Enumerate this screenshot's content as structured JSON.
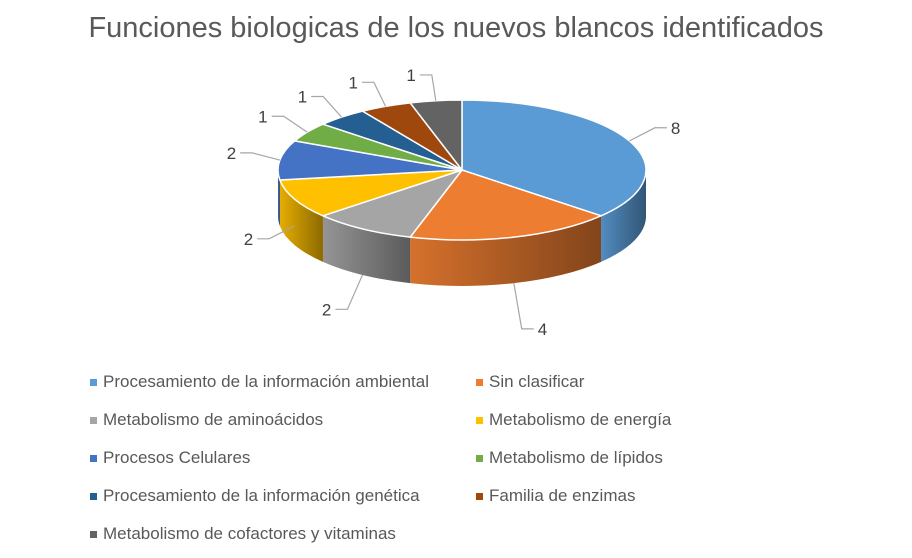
{
  "chart_data": {
    "type": "pie",
    "title": "Funciones biologicas de los nuevos blancos identificados",
    "categories": [
      "Procesamiento de la información ambiental",
      "Sin clasificar",
      "Metabolismo de aminoácidos",
      "Metabolismo de energía",
      "Procesos Celulares",
      "Metabolismo de lípidos",
      "Procesamiento de la información genética",
      "Familia de enzimas",
      "Metabolismo de cofactores y vitaminas"
    ],
    "values": [
      8,
      4,
      2,
      2,
      2,
      1,
      1,
      1,
      1
    ],
    "colors": [
      "#5b9bd5",
      "#ed7d31",
      "#a5a5a5",
      "#ffc000",
      "#4472c4",
      "#70ad47",
      "#255e91",
      "#9e480e",
      "#636363"
    ],
    "data_labels": [
      "8",
      "4",
      "2",
      "2",
      "2",
      "1",
      "1",
      "1",
      "1"
    ],
    "legend_position": "bottom",
    "style": "3d"
  }
}
